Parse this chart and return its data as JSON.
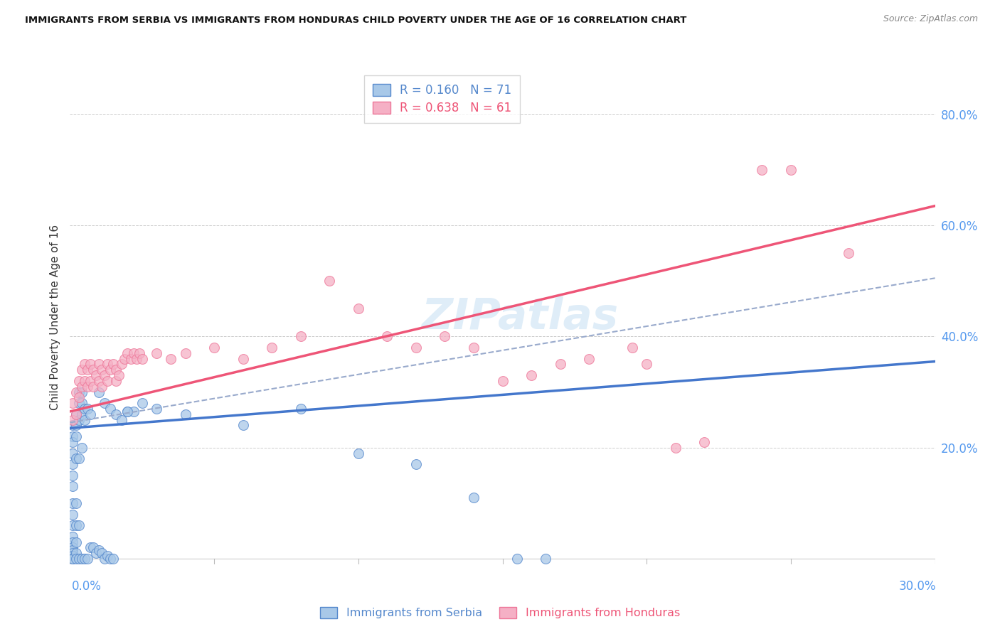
{
  "title": "IMMIGRANTS FROM SERBIA VS IMMIGRANTS FROM HONDURAS CHILD POVERTY UNDER THE AGE OF 16 CORRELATION CHART",
  "source": "Source: ZipAtlas.com",
  "ylabel": "Child Poverty Under the Age of 16",
  "xlim": [
    0.0,
    0.3
  ],
  "ylim": [
    -0.01,
    0.88
  ],
  "yticks": [
    0.0,
    0.2,
    0.4,
    0.6,
    0.8
  ],
  "ytick_labels": [
    "",
    "20.0%",
    "40.0%",
    "60.0%",
    "80.0%"
  ],
  "color_serbia": "#a8c8e8",
  "color_honduras": "#f5b0c5",
  "color_serbia_edge": "#5588cc",
  "color_honduras_edge": "#ee7799",
  "color_serbia_line": "#4477cc",
  "color_honduras_line": "#ee5577",
  "color_dashed": "#99aacc",
  "serbia_line_x0": 0.0,
  "serbia_line_y0": 0.235,
  "serbia_line_x1": 0.15,
  "serbia_line_y1": 0.295,
  "honduras_line_x0": 0.0,
  "honduras_line_y0": 0.265,
  "honduras_line_x1": 0.3,
  "honduras_line_y1": 0.635,
  "dashed_line_x0": 0.0,
  "dashed_line_y0": 0.245,
  "dashed_line_x1": 0.3,
  "dashed_line_y1": 0.505,
  "serbia_x": [
    0.001,
    0.001,
    0.001,
    0.001,
    0.001,
    0.001,
    0.001,
    0.001,
    0.001,
    0.001,
    0.001,
    0.001,
    0.001,
    0.001,
    0.001,
    0.001,
    0.001,
    0.001,
    0.002,
    0.002,
    0.002,
    0.002,
    0.002,
    0.002,
    0.002,
    0.002,
    0.002,
    0.003,
    0.003,
    0.003,
    0.003,
    0.003,
    0.003,
    0.004,
    0.004,
    0.004,
    0.004,
    0.004,
    0.005,
    0.005,
    0.005,
    0.006,
    0.006,
    0.007,
    0.007,
    0.008,
    0.009,
    0.01,
    0.011,
    0.012,
    0.013,
    0.014,
    0.015,
    0.02,
    0.022,
    0.03,
    0.04,
    0.06,
    0.08,
    0.1,
    0.12,
    0.14,
    0.155,
    0.165,
    0.01,
    0.012,
    0.014,
    0.016,
    0.018,
    0.02,
    0.025
  ],
  "serbia_y": [
    0.24,
    0.22,
    0.21,
    0.19,
    0.17,
    0.15,
    0.13,
    0.1,
    0.08,
    0.06,
    0.04,
    0.03,
    0.02,
    0.015,
    0.01,
    0.005,
    0.0,
    0.0,
    0.26,
    0.24,
    0.22,
    0.18,
    0.1,
    0.06,
    0.03,
    0.01,
    0.0,
    0.3,
    0.28,
    0.25,
    0.18,
    0.06,
    0.0,
    0.3,
    0.28,
    0.26,
    0.2,
    0.0,
    0.27,
    0.25,
    0.0,
    0.27,
    0.0,
    0.26,
    0.02,
    0.02,
    0.01,
    0.015,
    0.01,
    0.0,
    0.005,
    0.0,
    0.0,
    0.265,
    0.265,
    0.27,
    0.26,
    0.24,
    0.27,
    0.19,
    0.17,
    0.11,
    0.0,
    0.0,
    0.3,
    0.28,
    0.27,
    0.26,
    0.25,
    0.265,
    0.28
  ],
  "honduras_x": [
    0.001,
    0.001,
    0.002,
    0.002,
    0.003,
    0.003,
    0.004,
    0.004,
    0.005,
    0.005,
    0.006,
    0.006,
    0.007,
    0.007,
    0.008,
    0.008,
    0.009,
    0.01,
    0.01,
    0.011,
    0.011,
    0.012,
    0.013,
    0.013,
    0.014,
    0.015,
    0.016,
    0.016,
    0.017,
    0.018,
    0.019,
    0.02,
    0.021,
    0.022,
    0.023,
    0.024,
    0.025,
    0.03,
    0.035,
    0.04,
    0.05,
    0.06,
    0.07,
    0.08,
    0.09,
    0.1,
    0.11,
    0.12,
    0.13,
    0.14,
    0.15,
    0.16,
    0.17,
    0.18,
    0.195,
    0.2,
    0.21,
    0.22,
    0.24,
    0.25,
    0.27
  ],
  "honduras_y": [
    0.28,
    0.25,
    0.3,
    0.26,
    0.32,
    0.29,
    0.34,
    0.31,
    0.35,
    0.32,
    0.34,
    0.31,
    0.35,
    0.32,
    0.34,
    0.31,
    0.33,
    0.35,
    0.32,
    0.34,
    0.31,
    0.33,
    0.35,
    0.32,
    0.34,
    0.35,
    0.34,
    0.32,
    0.33,
    0.35,
    0.36,
    0.37,
    0.36,
    0.37,
    0.36,
    0.37,
    0.36,
    0.37,
    0.36,
    0.37,
    0.38,
    0.36,
    0.38,
    0.4,
    0.5,
    0.45,
    0.4,
    0.38,
    0.4,
    0.38,
    0.32,
    0.33,
    0.35,
    0.36,
    0.38,
    0.35,
    0.2,
    0.21,
    0.7,
    0.7,
    0.55
  ]
}
